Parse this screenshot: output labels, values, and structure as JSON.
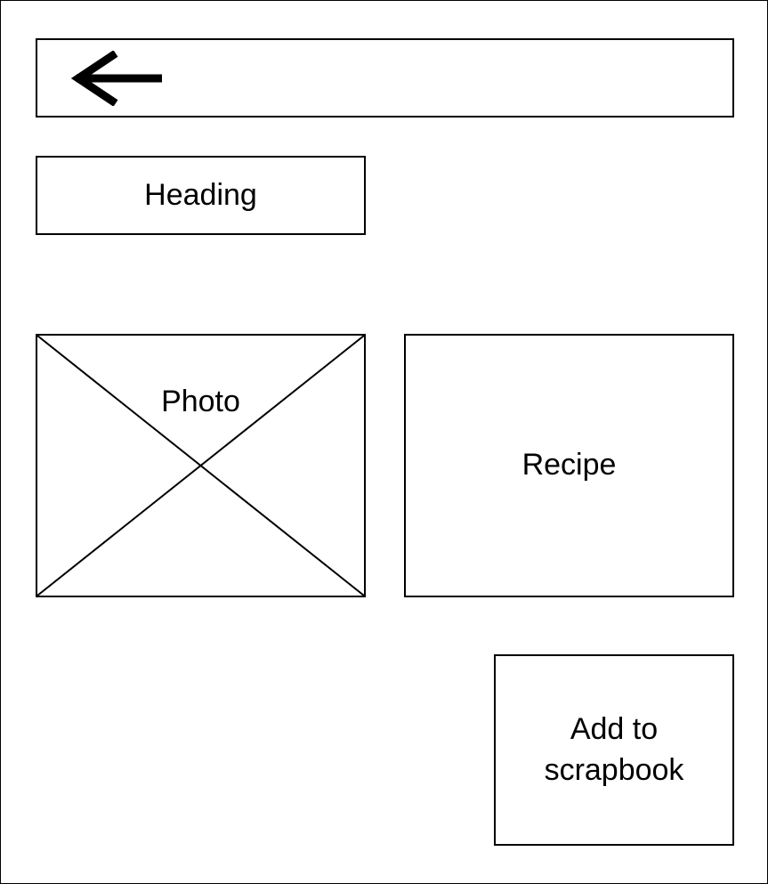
{
  "header": {
    "back_icon": "arrow-left-icon"
  },
  "heading": {
    "label": "Heading"
  },
  "photo": {
    "label": "Photo",
    "placeholder_icon": "image-placeholder-icon"
  },
  "recipe": {
    "label": "Recipe"
  },
  "scrapbook_button": {
    "line1": "Add to",
    "line2": "scrapbook"
  }
}
